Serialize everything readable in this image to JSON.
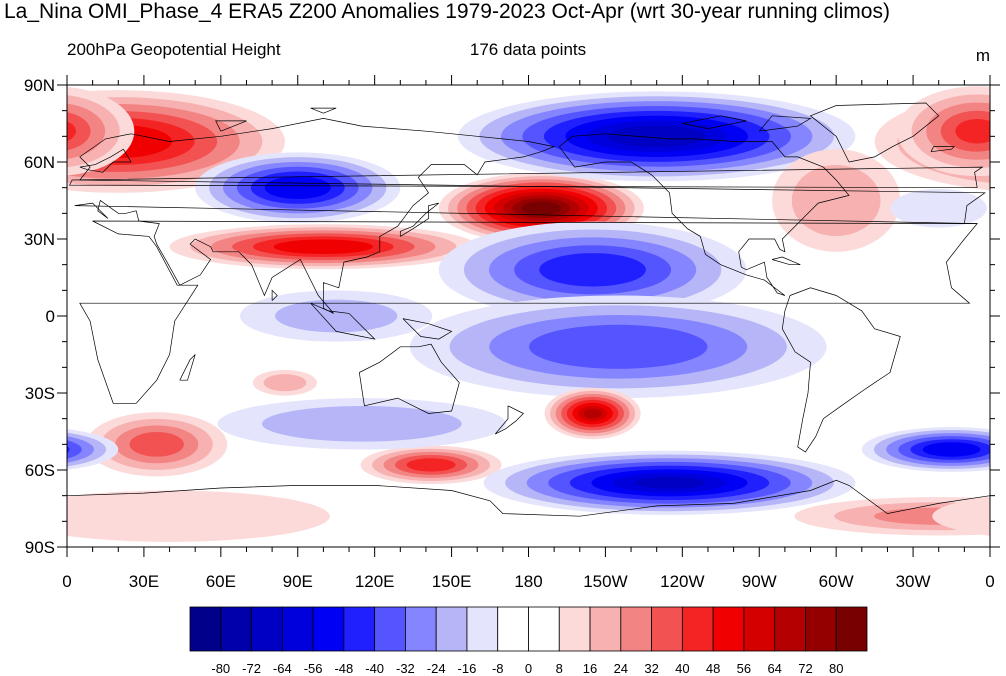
{
  "title": "La_Nina OMI_Phase_4 ERA5 Z200 Anomalies 1979-2023 Oct-Apr (wrt 30-year running climos)",
  "subtitle_left": "200hPa Geopotential Height",
  "subtitle_center": "176 data points",
  "units": "m",
  "map": {
    "lat_labels": [
      "90N",
      "60N",
      "30N",
      "0",
      "30S",
      "60S",
      "90S"
    ],
    "lat_values": [
      90,
      60,
      30,
      0,
      -30,
      -60,
      -90
    ],
    "lon_labels": [
      "0",
      "30E",
      "60E",
      "90E",
      "120E",
      "150E",
      "180",
      "150W",
      "120W",
      "90W",
      "60W",
      "30W",
      "0"
    ],
    "lon_values": [
      0,
      30,
      60,
      90,
      120,
      150,
      180,
      210,
      240,
      270,
      300,
      330,
      360
    ]
  },
  "colorbar": {
    "labels": [
      "-80",
      "-72",
      "-64",
      "-56",
      "-48",
      "-40",
      "-32",
      "-24",
      "-16",
      "-8",
      "0",
      "8",
      "16",
      "24",
      "32",
      "40",
      "48",
      "56",
      "64",
      "72",
      "80"
    ],
    "colors": [
      "#00008b",
      "#0000aa",
      "#0000c4",
      "#0000dd",
      "#0000f5",
      "#2020ff",
      "#5555ff",
      "#8585ff",
      "#b5b5f8",
      "#e4e4fc",
      "#ffffff",
      "#ffffff",
      "#fcdada",
      "#f7b1b1",
      "#f38484",
      "#f25252",
      "#f42424",
      "#f00000",
      "#d40000",
      "#b40000",
      "#940000",
      "#780000"
    ]
  },
  "anomalies": [
    {
      "name": "europe-high",
      "lon": 20,
      "lat": 68,
      "rx": 52,
      "ry": 16,
      "value": 55
    },
    {
      "name": "greenland-high",
      "lon": 355,
      "lat": 72,
      "rx": 25,
      "ry": 14,
      "value": 40
    },
    {
      "name": "siberia-low",
      "lon": 90,
      "lat": 50,
      "rx": 32,
      "ry": 11,
      "value": -55
    },
    {
      "name": "pacific-high",
      "lon": 185,
      "lat": 42,
      "rx": 32,
      "ry": 11,
      "value": 85
    },
    {
      "name": "canada-low",
      "lon": 230,
      "lat": 70,
      "rx": 62,
      "ry": 14,
      "value": -70
    },
    {
      "name": "subtropical-high",
      "lon": 100,
      "lat": 27,
      "rx": 48,
      "ry": 7,
      "value": 55
    },
    {
      "name": "tropical-pacific-low",
      "lon": 205,
      "lat": 18,
      "rx": 48,
      "ry": 15,
      "value": -45
    },
    {
      "name": "equatorial-low",
      "lon": 215,
      "lat": -12,
      "rx": 65,
      "ry": 16,
      "value": -38
    },
    {
      "name": "south-pacific-high",
      "lon": 205,
      "lat": -38,
      "rx": 15,
      "ry": 8,
      "value": 65
    },
    {
      "name": "tasman-high",
      "lon": 142,
      "lat": -58,
      "rx": 22,
      "ry": 6,
      "value": 45
    },
    {
      "name": "africa-south-high",
      "lon": 35,
      "lat": -50,
      "rx": 22,
      "ry": 10,
      "value": 35
    },
    {
      "name": "southern-low",
      "lon": 235,
      "lat": -65,
      "rx": 58,
      "ry": 10,
      "value": -65
    },
    {
      "name": "south-atlantic-low",
      "lon": 345,
      "lat": -52,
      "rx": 28,
      "ry": 7,
      "value": -55
    },
    {
      "name": "indian-ocean-low",
      "lon": 105,
      "lat": 0,
      "rx": 30,
      "ry": 8,
      "value": -18
    },
    {
      "name": "south-indian-low",
      "lon": 115,
      "lat": -42,
      "rx": 45,
      "ry": 8,
      "value": -22
    },
    {
      "name": "north-atlantic-high",
      "lon": 300,
      "lat": 45,
      "rx": 20,
      "ry": 16,
      "value": 22
    },
    {
      "name": "antarctic-high",
      "lon": 340,
      "lat": -78,
      "rx": 45,
      "ry": 6,
      "value": 25
    },
    {
      "name": "africa-polar-high",
      "lon": 40,
      "lat": -78,
      "rx": 50,
      "ry": 8,
      "value": 12
    },
    {
      "name": "india-small-high",
      "lon": 85,
      "lat": -26,
      "rx": 10,
      "ry": 4,
      "value": 20
    },
    {
      "name": "east-atlantic-low",
      "lon": 340,
      "lat": 42,
      "rx": 15,
      "ry": 6,
      "value": -15
    }
  ]
}
